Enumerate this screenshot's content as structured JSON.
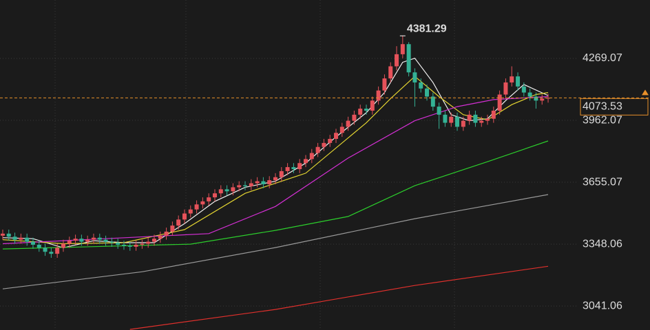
{
  "chart_data": {
    "type": "candlestick",
    "xlim": [
      -0.45,
      90.45
    ],
    "ylim": [
      2922,
      4559
    ],
    "yticks": [
      4269.07,
      3962.07,
      3655.07,
      3348.06,
      3041.06
    ],
    "grid": true,
    "up_color": "#e5525a",
    "down_color": "#34b295",
    "open": [
      3390,
      3400,
      3385,
      3370,
      3380,
      3360,
      3345,
      3330,
      3310,
      3300,
      3330,
      3350,
      3365,
      3375,
      3360,
      3370,
      3380,
      3370,
      3360,
      3355,
      3345,
      3340,
      3335,
      3345,
      3350,
      3360,
      3375,
      3390,
      3410,
      3440,
      3470,
      3500,
      3520,
      3545,
      3560,
      3580,
      3600,
      3620,
      3610,
      3630,
      3640,
      3635,
      3650,
      3660,
      3645,
      3665,
      3680,
      3710,
      3730,
      3720,
      3750,
      3770,
      3800,
      3830,
      3850,
      3870,
      3900,
      3930,
      3960,
      3990,
      4020,
      4010,
      4060,
      4110,
      4170,
      4230,
      4290,
      4340,
      4200,
      4150,
      4120,
      4080,
      4030,
      3990,
      3950,
      3980,
      3930,
      3960,
      3990,
      3950,
      3960,
      3970,
      4010,
      4090,
      4150,
      4180,
      4130,
      4100,
      4080,
      4060,
      4070
    ],
    "high": [
      3420,
      3420,
      3405,
      3400,
      3400,
      3380,
      3365,
      3350,
      3330,
      3350,
      3370,
      3385,
      3395,
      3395,
      3390,
      3400,
      3400,
      3390,
      3380,
      3375,
      3365,
      3360,
      3365,
      3370,
      3380,
      3395,
      3410,
      3430,
      3460,
      3490,
      3520,
      3540,
      3565,
      3580,
      3600,
      3620,
      3640,
      3640,
      3650,
      3660,
      3660,
      3670,
      3680,
      3680,
      3685,
      3700,
      3730,
      3750,
      3750,
      3770,
      3790,
      3820,
      3850,
      3870,
      3890,
      3920,
      3950,
      3980,
      4010,
      4040,
      4040,
      4080,
      4130,
      4190,
      4250,
      4330,
      4381.29,
      4350,
      4220,
      4170,
      4140,
      4100,
      4050,
      4010,
      4000,
      4000,
      3980,
      4010,
      4010,
      3980,
      3990,
      4030,
      4110,
      4170,
      4230,
      4200,
      4150,
      4120,
      4100,
      4090,
      4093
    ],
    "low": [
      3370,
      3365,
      3350,
      3350,
      3340,
      3325,
      3310,
      3290,
      3280,
      3280,
      3310,
      3330,
      3345,
      3340,
      3340,
      3350,
      3350,
      3340,
      3335,
      3325,
      3320,
      3315,
      3315,
      3325,
      3330,
      3340,
      3355,
      3370,
      3390,
      3420,
      3450,
      3480,
      3500,
      3525,
      3540,
      3560,
      3580,
      3590,
      3590,
      3610,
      3615,
      3615,
      3630,
      3625,
      3625,
      3645,
      3660,
      3690,
      3700,
      3700,
      3730,
      3750,
      3780,
      3810,
      3830,
      3850,
      3880,
      3910,
      3940,
      3970,
      3990,
      3990,
      4040,
      4090,
      4150,
      4210,
      4270,
      4180,
      4030,
      4100,
      4060,
      4010,
      3920,
      3930,
      3930,
      3910,
      3910,
      3940,
      3930,
      3930,
      3940,
      3950,
      3990,
      4070,
      4130,
      4110,
      4080,
      4060,
      4020,
      4040,
      4050
    ],
    "close": [
      3400,
      3385,
      3370,
      3380,
      3360,
      3345,
      3330,
      3310,
      3300,
      3330,
      3350,
      3365,
      3375,
      3360,
      3370,
      3380,
      3370,
      3360,
      3355,
      3345,
      3340,
      3335,
      3345,
      3350,
      3360,
      3375,
      3390,
      3410,
      3440,
      3470,
      3500,
      3520,
      3545,
      3560,
      3580,
      3600,
      3620,
      3610,
      3630,
      3640,
      3635,
      3650,
      3660,
      3645,
      3665,
      3680,
      3710,
      3730,
      3720,
      3750,
      3770,
      3800,
      3830,
      3850,
      3870,
      3900,
      3930,
      3960,
      3990,
      4020,
      4010,
      4060,
      4110,
      4170,
      4230,
      4290,
      4340,
      4200,
      4150,
      4120,
      4080,
      4030,
      3990,
      3950,
      3980,
      3930,
      3960,
      3990,
      3950,
      3960,
      3970,
      4010,
      4090,
      4150,
      4180,
      4130,
      4100,
      4080,
      4060,
      4070,
      4073.53
    ],
    "series": [
      {
        "color": "#f2f2f2",
        "x": [
          0,
          5,
          10,
          15,
          20,
          25,
          30,
          35,
          40,
          45,
          50,
          55,
          60,
          63,
          66,
          68,
          71,
          74,
          77,
          80,
          83,
          86,
          90
        ],
        "values": [
          3380,
          3375,
          3330,
          3365,
          3355,
          3355,
          3450,
          3560,
          3630,
          3660,
          3750,
          3880,
          4000,
          4100,
          4250,
          4270,
          4150,
          3990,
          3960,
          3970,
          4060,
          4140,
          4085
        ]
      },
      {
        "color": "#e3d431",
        "x": [
          0,
          10,
          20,
          30,
          40,
          50,
          60,
          64,
          68,
          72,
          76,
          80,
          84,
          88,
          90
        ],
        "values": [
          3370,
          3350,
          3355,
          3420,
          3600,
          3700,
          3950,
          4070,
          4180,
          4080,
          3990,
          3965,
          4040,
          4090,
          4100
        ]
      },
      {
        "color": "#d42fd4",
        "x": [
          0,
          34,
          45,
          57,
          68,
          75,
          81,
          90
        ],
        "values": [
          3350,
          3400,
          3535,
          3775,
          3960,
          4030,
          4065,
          4080
        ]
      },
      {
        "color": "#2ccf2c",
        "x": [
          0,
          31,
          45,
          57,
          68,
          80,
          90
        ],
        "values": [
          3324,
          3348,
          3416,
          3485,
          3638,
          3757,
          3860
        ]
      },
      {
        "color": "#9a9a9a",
        "x": [
          0,
          23,
          45,
          68,
          90
        ],
        "values": [
          3126,
          3211,
          3331,
          3474,
          3594
        ]
      },
      {
        "color": "#e0302c",
        "x": [
          21,
          45,
          68,
          90
        ],
        "values": [
          2925,
          3024,
          3143,
          3238
        ]
      }
    ]
  }
}
